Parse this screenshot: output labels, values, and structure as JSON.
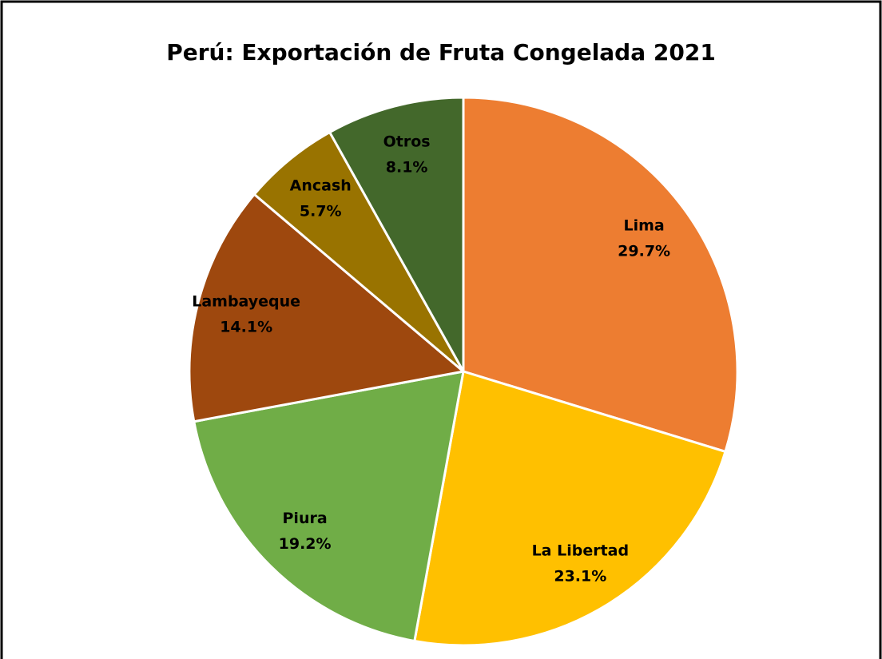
{
  "chart_data": {
    "type": "pie",
    "title": "Perú: Exportación de Fruta Congelada 2021",
    "categories": [
      "Lima",
      "La Libertad",
      "Piura",
      "Lambayeque",
      "Ancash",
      "Otros"
    ],
    "values": [
      29.7,
      23.1,
      19.2,
      14.1,
      5.7,
      8.1
    ],
    "value_labels": [
      "29.7%",
      "23.1%",
      "19.2%",
      "14.1%",
      "5.7%",
      "8.1%"
    ],
    "colors": [
      "#ED7D31",
      "#FFC000",
      "#70AD47",
      "#9E480E",
      "#997300",
      "#43682B"
    ]
  }
}
